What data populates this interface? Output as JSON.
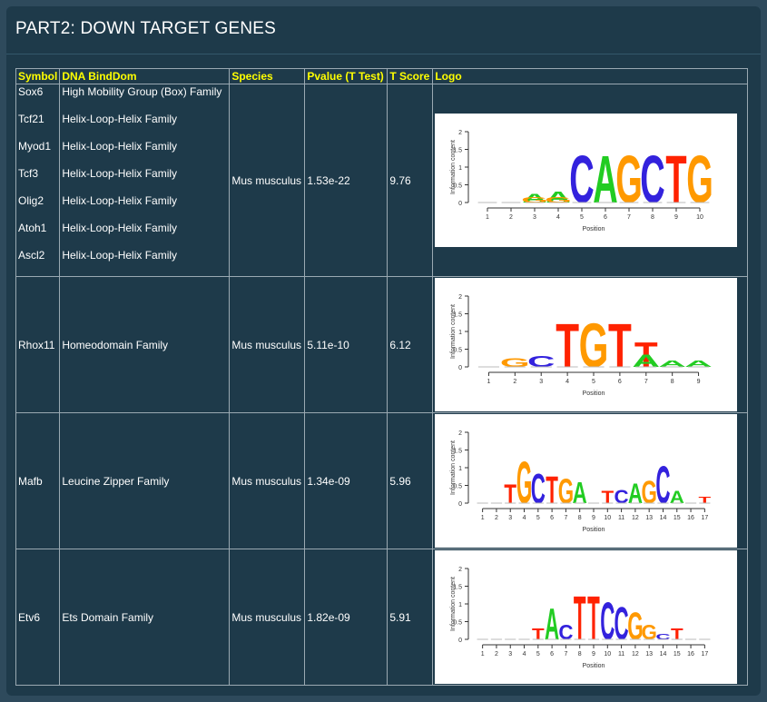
{
  "page": {
    "title": "PART2: DOWN TARGET GENES"
  },
  "table": {
    "headers": {
      "symbol": "Symbol",
      "domain": "DNA BindDom",
      "species": "Species",
      "pvalue": "Pvalue (T Test)",
      "tscore": "T Score",
      "logo": "Logo"
    },
    "groups": [
      {
        "symbols": [
          "Sox6",
          "Tcf21",
          "Myod1",
          "Tcf3",
          "Olig2",
          "Atoh1",
          "Ascl2"
        ],
        "domains": [
          "High Mobility Group (Box) Family",
          "Helix-Loop-Helix Family",
          "Helix-Loop-Helix Family",
          "Helix-Loop-Helix Family",
          "Helix-Loop-Helix Family",
          "Helix-Loop-Helix Family",
          "Helix-Loop-Helix Family"
        ],
        "species": "Mus musculus",
        "pvalue": "1.53e-22",
        "tscore": "9.76",
        "logo": {
          "motif": "CAGCTG",
          "positions": 10,
          "xlabel": "Position",
          "ylabel": "Information content"
        }
      },
      {
        "symbols": [
          "Rhox11"
        ],
        "domains": [
          "Homeodomain Family"
        ],
        "species": "Mus musculus",
        "pvalue": "5.11e-10",
        "tscore": "6.12",
        "logo": {
          "motif": "TGTT",
          "positions": 9,
          "xlabel": "Position",
          "ylabel": "Information content"
        }
      },
      {
        "symbols": [
          "Mafb"
        ],
        "domains": [
          "Leucine Zipper Family"
        ],
        "species": "Mus musculus",
        "pvalue": "1.34e-09",
        "tscore": "5.96",
        "logo": {
          "motif": "TGCTGATCAGCA",
          "positions": 17,
          "xlabel": "Position",
          "ylabel": "Information content"
        }
      },
      {
        "symbols": [
          "Etv6"
        ],
        "domains": [
          "Ets Domain Family"
        ],
        "species": "Mus musculus",
        "pvalue": "1.82e-09",
        "tscore": "5.91",
        "logo": {
          "motif": "ACTTCCGG",
          "positions": 17,
          "xlabel": "Position",
          "ylabel": "Information content"
        }
      }
    ]
  },
  "logo_axis": {
    "yticks": [
      "0",
      "0.5",
      "1",
      "1.5",
      "2"
    ]
  },
  "nucleotide_colors": {
    "A": "#22cc22",
    "C": "#3322dd",
    "G": "#ff9900",
    "T": "#ff2200"
  }
}
